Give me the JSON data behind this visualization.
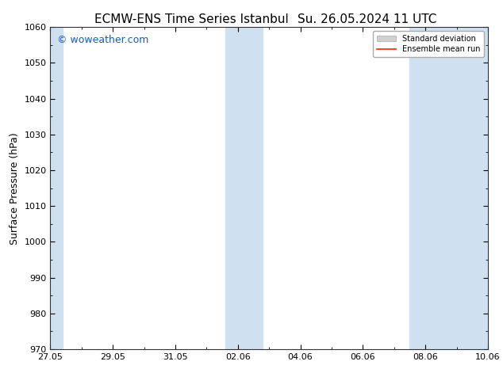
{
  "title_left": "ECMW-ENS Time Series Istanbul",
  "title_right": "Su. 26.05.2024 11 UTC",
  "ylabel": "Surface Pressure (hPa)",
  "ylim": [
    970,
    1060
  ],
  "yticks": [
    970,
    980,
    990,
    1000,
    1010,
    1020,
    1030,
    1040,
    1050,
    1060
  ],
  "x_start_days": 0,
  "x_end_days": 14,
  "x_tick_labels": [
    "27.05",
    "29.05",
    "31.05",
    "02.06",
    "04.06",
    "06.06",
    "08.06",
    "10.06"
  ],
  "x_tick_positions": [
    0,
    2,
    4,
    6,
    8,
    10,
    12,
    14
  ],
  "shaded_bands": [
    {
      "x_start": -0.1,
      "x_end": 0.4
    },
    {
      "x_start": 5.6,
      "x_end": 6.8
    },
    {
      "x_start": 11.5,
      "x_end": 14.1
    }
  ],
  "shade_color": "#cfe0f0",
  "background_color": "#ffffff",
  "watermark_text": "© woweather.com",
  "watermark_color": "#1a5bb5",
  "legend_std_color": "#d0d0d0",
  "legend_mean_color": "#ff2200",
  "title_fontsize": 11,
  "axis_fontsize": 9,
  "tick_fontsize": 8,
  "watermark_fontsize": 9,
  "legend_fontsize": 7
}
